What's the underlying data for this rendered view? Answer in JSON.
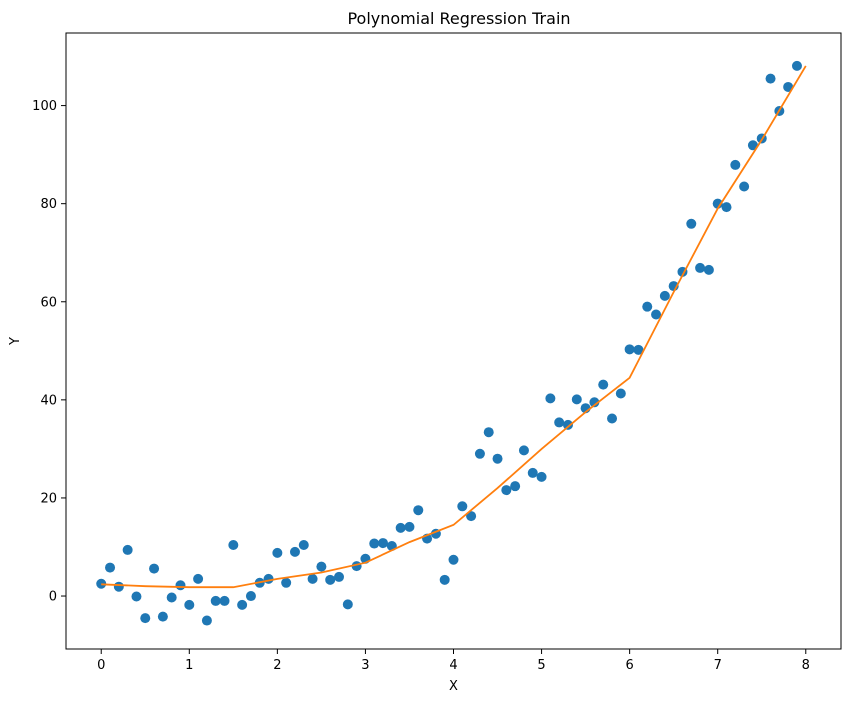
{
  "chart_data": {
    "type": "scatter",
    "title": "Polynomial Regression Train",
    "xlabel": "X",
    "ylabel": "Y",
    "xlim": [
      -0.4,
      8.4
    ],
    "ylim": [
      -10.8,
      114.8
    ],
    "xticks": [
      0,
      1,
      2,
      3,
      4,
      5,
      6,
      7,
      8
    ],
    "yticks": [
      0,
      20,
      40,
      60,
      80,
      100
    ],
    "grid": false,
    "legend": "none",
    "colors": {
      "points": "#1f77b4",
      "fit": "#ff7f0e"
    },
    "series": [
      {
        "type": "scatter",
        "x": [
          0.0,
          0.1,
          0.2,
          0.3,
          0.4,
          0.5,
          0.6,
          0.7,
          0.8,
          0.9,
          1.0,
          1.1,
          1.2,
          1.3,
          1.4,
          1.5,
          1.6,
          1.7,
          1.8,
          1.9,
          2.0,
          2.1,
          2.2,
          2.3,
          2.4,
          2.5,
          2.6,
          2.7,
          2.8,
          2.9,
          3.0,
          3.1,
          3.2,
          3.3,
          3.4,
          3.5,
          3.6,
          3.7,
          3.8,
          3.9,
          4.0,
          4.1,
          4.2,
          4.3,
          4.4,
          4.5,
          4.6,
          4.7,
          4.8,
          4.9,
          5.0,
          5.1,
          5.2,
          5.3,
          5.4,
          5.5,
          5.6,
          5.7,
          5.8,
          5.9,
          6.0,
          6.1,
          6.2,
          6.3,
          6.4,
          6.5,
          6.6,
          6.7,
          6.8,
          6.9,
          7.0,
          7.1,
          7.2,
          7.3,
          7.4,
          7.5,
          7.6,
          7.7,
          7.8,
          7.9
        ],
        "y": [
          2.5,
          5.8,
          1.9,
          9.4,
          -0.1,
          -4.5,
          5.6,
          -4.2,
          -0.3,
          2.2,
          -1.8,
          3.5,
          -5.0,
          -1.0,
          -1.0,
          10.4,
          -1.8,
          0.0,
          2.7,
          3.5,
          8.8,
          2.7,
          9.0,
          10.4,
          3.5,
          6.0,
          3.3,
          3.9,
          -1.7,
          6.1,
          7.6,
          10.7,
          10.8,
          10.2,
          13.9,
          14.1,
          17.5,
          11.7,
          12.7,
          3.3,
          7.4,
          18.3,
          16.3,
          29.0,
          33.4,
          28.0,
          21.6,
          22.4,
          29.7,
          25.1,
          24.3,
          40.3,
          35.4,
          34.9,
          40.1,
          38.3,
          39.5,
          43.1,
          36.2,
          41.3,
          50.3,
          50.2,
          59.0,
          57.4,
          61.2,
          63.2,
          66.1,
          75.9,
          66.9,
          66.5,
          80.0,
          79.3,
          87.9,
          83.5,
          91.9,
          93.3,
          105.5,
          98.9,
          103.8,
          108.1
        ]
      },
      {
        "type": "line",
        "x": [
          0.0,
          0.5,
          1.0,
          1.5,
          2.0,
          2.5,
          3.0,
          3.5,
          4.0,
          4.5,
          5.0,
          5.5,
          6.0,
          6.5,
          7.0,
          7.5,
          8.0
        ],
        "y": [
          2.4,
          2.0,
          1.8,
          1.8,
          3.5,
          4.8,
          6.8,
          11.0,
          14.5,
          22.0,
          30.0,
          37.5,
          44.5,
          62.0,
          79.0,
          93.0,
          108.1
        ]
      }
    ]
  }
}
